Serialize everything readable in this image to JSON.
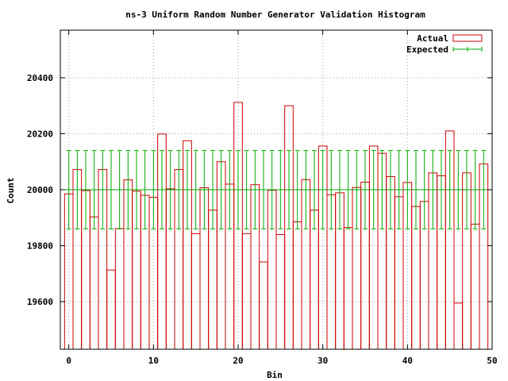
{
  "chart_data": {
    "type": "bar",
    "title": "ns-3 Uniform Random Number Generator Validation Histogram",
    "xlabel": "Bin",
    "ylabel": "Count",
    "xlim": [
      -1,
      50
    ],
    "ylim": [
      19430,
      20570
    ],
    "xticks": [
      0,
      10,
      20,
      30,
      40,
      50
    ],
    "yticks": [
      19600,
      19800,
      20000,
      20200,
      20400
    ],
    "grid": true,
    "legend_position": "top-right",
    "series": [
      {
        "name": "Actual",
        "style": "histogram-outline",
        "color": "#cc0000",
        "x": [
          0,
          1,
          2,
          3,
          4,
          5,
          6,
          7,
          8,
          9,
          10,
          11,
          12,
          13,
          14,
          15,
          16,
          17,
          18,
          19,
          20,
          21,
          22,
          23,
          24,
          25,
          26,
          27,
          28,
          29,
          30,
          31,
          32,
          33,
          34,
          35,
          36,
          37,
          38,
          39,
          40,
          41,
          42,
          43,
          44,
          45,
          46,
          47,
          48,
          49
        ],
        "values": [
          19985,
          20072,
          19997,
          19903,
          20072,
          19713,
          19861,
          20035,
          19995,
          19980,
          19973,
          20199,
          20003,
          20072,
          20175,
          19843,
          20007,
          19927,
          20100,
          20020,
          20312,
          19843,
          20018,
          19742,
          19998,
          19840,
          20300,
          19885,
          20036,
          19927,
          20156,
          19982,
          19989,
          19865,
          20008,
          20027,
          20156,
          20130,
          20047,
          19975,
          20026,
          19940,
          19958,
          20060,
          20050,
          20210,
          19595,
          20060,
          19877,
          20092
        ]
      },
      {
        "name": "Expected",
        "style": "errorbars",
        "color": "#00aa00",
        "value": 20000,
        "error": 140
      }
    ]
  }
}
